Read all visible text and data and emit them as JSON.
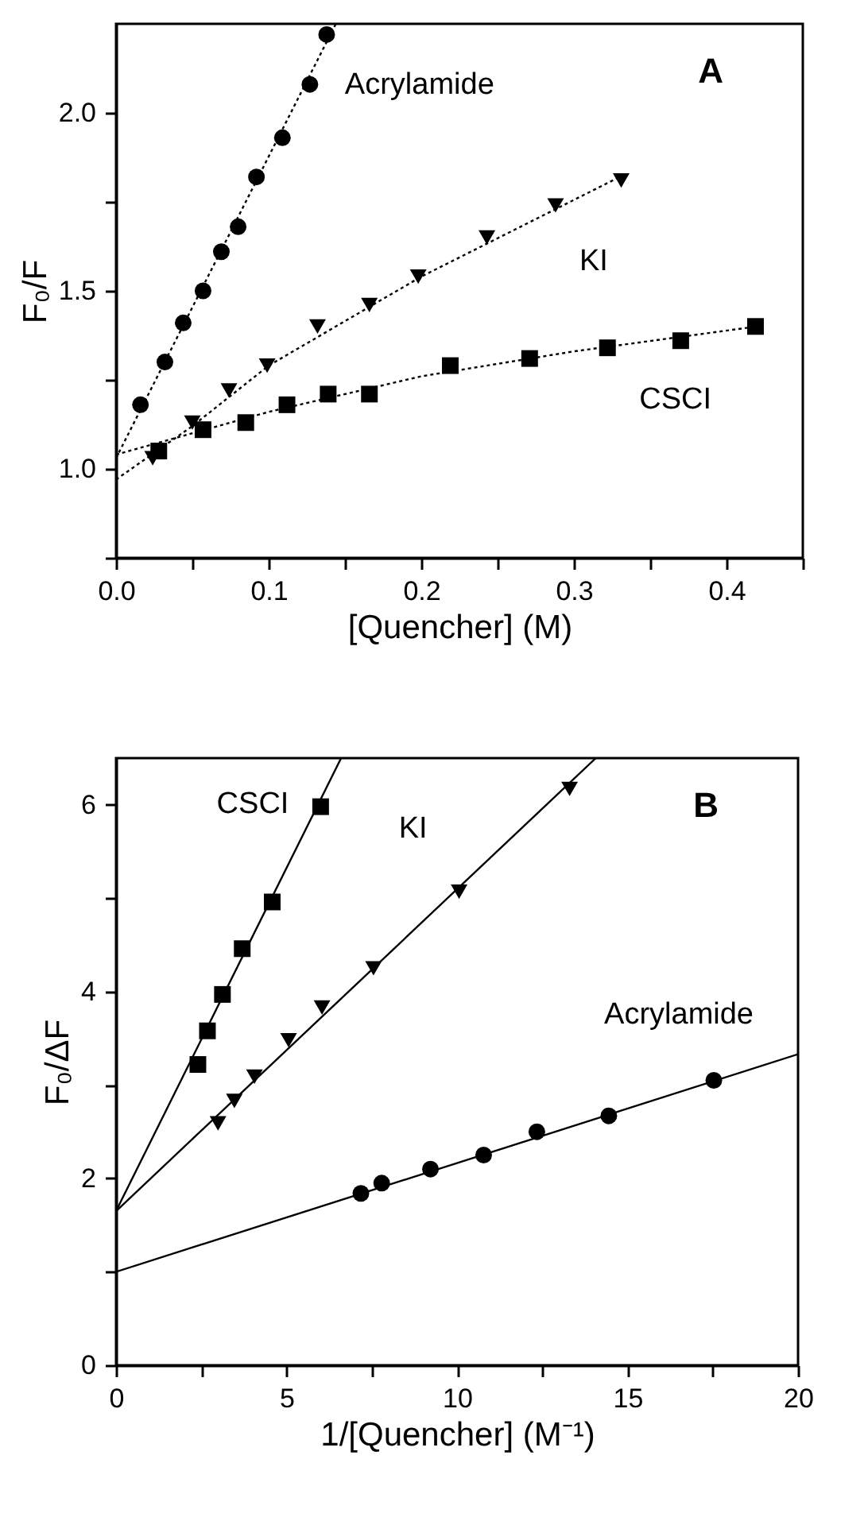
{
  "chart_data": [
    {
      "type": "scatter",
      "xlabel": "[Quencher] (M)",
      "ylabel": "F₀/F",
      "annotations": [
        "A"
      ],
      "xlim": [
        0,
        0.45
      ],
      "xticks": [
        {
          "value": 0,
          "label": "0.0"
        },
        {
          "value": 0.05,
          "label": null
        },
        {
          "value": 0.1,
          "label": "0.1"
        },
        {
          "value": 0.15,
          "label": null
        },
        {
          "value": 0.2,
          "label": "0.2"
        },
        {
          "value": 0.25,
          "label": null
        },
        {
          "value": 0.3,
          "label": "0.3"
        },
        {
          "value": 0.35,
          "label": null
        },
        {
          "value": 0.4,
          "label": "0.4"
        },
        {
          "value": 0.45,
          "label": null
        }
      ],
      "ylim": [
        0.75,
        2.25
      ],
      "yticks": [
        {
          "value": 0.75,
          "label": null
        },
        {
          "value": 1,
          "label": "1.0"
        },
        {
          "value": 1.25,
          "label": null
        },
        {
          "value": 1.5,
          "label": "1.5"
        },
        {
          "value": 1.75,
          "label": null
        },
        {
          "value": 2,
          "label": "2.0"
        }
      ],
      "grid": false,
      "series": [
        {
          "name": "Acrylamide",
          "marker": "circle",
          "color": "#000000",
          "x": [
            0.016,
            0.032,
            0.044,
            0.057,
            0.069,
            0.08,
            0.092,
            0.109,
            0.127,
            0.138
          ],
          "values": [
            1.18,
            1.3,
            1.41,
            1.5,
            1.61,
            1.68,
            1.82,
            1.93,
            2.08,
            2.22
          ]
        },
        {
          "name": "KI",
          "marker": "triangle",
          "color": "#000000",
          "x": [
            0.024,
            0.05,
            0.074,
            0.099,
            0.132,
            0.166,
            0.198,
            0.243,
            0.288,
            0.331
          ],
          "values": [
            1.03,
            1.13,
            1.22,
            1.29,
            1.4,
            1.46,
            1.54,
            1.65,
            1.74,
            1.81
          ]
        },
        {
          "name": "CSCI",
          "marker": "square",
          "color": "#000000",
          "x": [
            0.028,
            0.057,
            0.085,
            0.112,
            0.139,
            0.166,
            0.219,
            0.271,
            0.322,
            0.37,
            0.419
          ],
          "values": [
            1.05,
            1.11,
            1.13,
            1.18,
            1.21,
            1.21,
            1.29,
            1.31,
            1.34,
            1.36,
            1.4
          ]
        },
        {
          "type": "line",
          "line_style": "dotted",
          "color": "#000000",
          "x": [
            0,
            0.144
          ],
          "values": [
            1.03,
            2.25
          ]
        },
        {
          "type": "line",
          "line_style": "dotted",
          "color": "#000000",
          "x": [
            0,
            0.05,
            0.1,
            0.2,
            0.33
          ],
          "values": [
            0.97,
            1.12,
            1.29,
            1.54,
            1.82
          ]
        },
        {
          "type": "line",
          "line_style": "dotted",
          "color": "#000000",
          "x": [
            0,
            0.1,
            0.2,
            0.3,
            0.42
          ],
          "values": [
            1.04,
            1.16,
            1.26,
            1.33,
            1.4
          ]
        }
      ]
    },
    {
      "type": "scatter",
      "xlabel": "1/[Quencher] (M⁻¹)",
      "ylabel": "F₀/ΔF",
      "annotations": [
        "B"
      ],
      "xlim": [
        0,
        20
      ],
      "xticks": [
        0,
        {
          "value": 2.5,
          "label": null
        },
        5,
        {
          "value": 7.5,
          "label": null
        },
        10,
        {
          "value": 12.5,
          "label": null
        },
        15,
        {
          "value": 17.5,
          "label": null
        },
        20
      ],
      "ylim": [
        0,
        6.5
      ],
      "yticks": [
        0,
        {
          "value": 1,
          "label": null
        },
        2,
        {
          "value": 3,
          "label": null
        },
        4,
        {
          "value": 5,
          "label": null
        },
        6
      ],
      "grid": false,
      "series": [
        {
          "name": "CSCI",
          "marker": "square",
          "color": "#000000",
          "x": [
            2.4,
            2.68,
            3.12,
            3.7,
            4.58,
            6.0
          ],
          "values": [
            3.22,
            3.58,
            3.97,
            4.46,
            4.96,
            5.98
          ]
        },
        {
          "name": "KI",
          "marker": "triangle",
          "color": "#000000",
          "x": [
            2.99,
            3.47,
            4.06,
            5.06,
            6.04,
            7.55,
            10.06,
            13.3
          ],
          "values": [
            2.59,
            2.83,
            3.09,
            3.48,
            3.83,
            4.25,
            5.07,
            6.17
          ]
        },
        {
          "name": "Acrylamide",
          "marker": "circle",
          "color": "#000000",
          "x": [
            7.18,
            7.79,
            9.22,
            10.78,
            12.34,
            14.45,
            17.53
          ],
          "values": [
            1.84,
            1.95,
            2.1,
            2.25,
            2.5,
            2.67,
            3.05
          ]
        },
        {
          "type": "line",
          "line_style": "solid",
          "color": "#000000",
          "x": [
            0,
            6.6
          ],
          "values": [
            1.65,
            6.5
          ]
        },
        {
          "type": "line",
          "line_style": "solid",
          "color": "#000000",
          "x": [
            0,
            14.07
          ],
          "values": [
            1.65,
            6.5
          ]
        },
        {
          "type": "line",
          "line_style": "solid",
          "color": "#000000",
          "x": [
            0,
            20
          ],
          "values": [
            1.0,
            3.33
          ]
        }
      ]
    }
  ]
}
